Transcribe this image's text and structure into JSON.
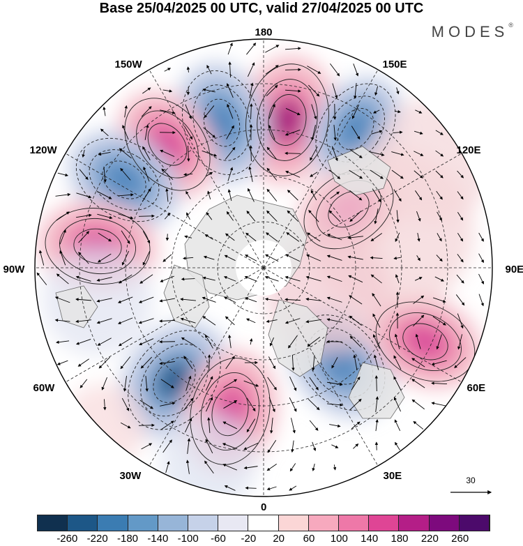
{
  "title": "Base 25/04/2025 00 UTC, valid 27/04/2025 00 UTC",
  "brand": "MODES",
  "brand_mark": "®",
  "map": {
    "projection": "north-polar-stereographic",
    "longitude_labels": [
      "180",
      "150E",
      "120E",
      "90E",
      "60E",
      "30E",
      "0",
      "30W",
      "60W",
      "90W",
      "120W",
      "150W"
    ],
    "anomaly_centers": [
      {
        "sign": "positive",
        "intensity": 250
      },
      {
        "sign": "negative",
        "intensity": 180
      },
      {
        "sign": "positive",
        "intensity": 140
      },
      {
        "sign": "negative",
        "intensity": 150
      },
      {
        "sign": "positive",
        "intensity": 170
      },
      {
        "sign": "negative",
        "intensity": 220
      },
      {
        "sign": "positive",
        "intensity": 200
      },
      {
        "sign": "negative",
        "intensity": 180
      },
      {
        "sign": "positive",
        "intensity": 150
      },
      {
        "sign": "negative",
        "intensity": 100
      },
      {
        "sign": "positive",
        "intensity": 90
      }
    ]
  },
  "vector_reference": "30",
  "colorbar": {
    "ticks": [
      "-260",
      "-220",
      "-180",
      "-140",
      "-100",
      "-60",
      "-20",
      "20",
      "60",
      "100",
      "140",
      "180",
      "220",
      "260"
    ],
    "colors": [
      "#10304f",
      "#1d5787",
      "#3b7cb2",
      "#6399c7",
      "#97b5d8",
      "#c6d2e9",
      "#e8e8f3",
      "#ffffff",
      "#fbd6d6",
      "#f7a9be",
      "#ee78a8",
      "#df4595",
      "#b41e87",
      "#7d0a7d",
      "#4c0a6b"
    ]
  }
}
